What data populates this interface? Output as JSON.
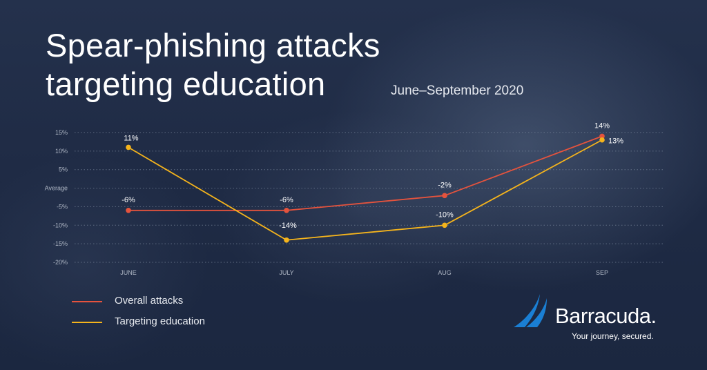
{
  "title": "Spear-phishing attacks targeting education",
  "subtitle": "June–September 2020",
  "chart_data": {
    "type": "line",
    "categories": [
      "JUNE",
      "JULY",
      "AUG",
      "SEP"
    ],
    "series": [
      {
        "name": "Overall attacks",
        "values": [
          -6,
          -6,
          -2,
          14
        ],
        "labels": [
          "-6%",
          "-6%",
          "-2%",
          "14%"
        ],
        "color": "#e5533d"
      },
      {
        "name": "Targeting education",
        "values": [
          11,
          -14,
          -10,
          13
        ],
        "labels": [
          "11%",
          "-14%",
          "-10%",
          "13%"
        ],
        "color": "#f5b41c"
      }
    ],
    "yticks": [
      {
        "value": 15,
        "label": "15%"
      },
      {
        "value": 10,
        "label": "10%"
      },
      {
        "value": 5,
        "label": "5%"
      },
      {
        "value": 0,
        "label": "Average"
      },
      {
        "value": -5,
        "label": "-5%"
      },
      {
        "value": -10,
        "label": "-10%"
      },
      {
        "value": -15,
        "label": "-15%"
      },
      {
        "value": -20,
        "label": "-20%"
      }
    ],
    "ylim": [
      -20,
      15
    ],
    "grid": true,
    "gridline_style": "dotted",
    "legend_position": "bottom-left"
  },
  "legend": {
    "items": [
      {
        "label": "Overall attacks",
        "color": "#e5533d"
      },
      {
        "label": "Targeting education",
        "color": "#f5b41c"
      }
    ]
  },
  "logo": {
    "name": "Barracuda.",
    "tagline": "Your journey, secured.",
    "color": "#1a7fd4"
  }
}
